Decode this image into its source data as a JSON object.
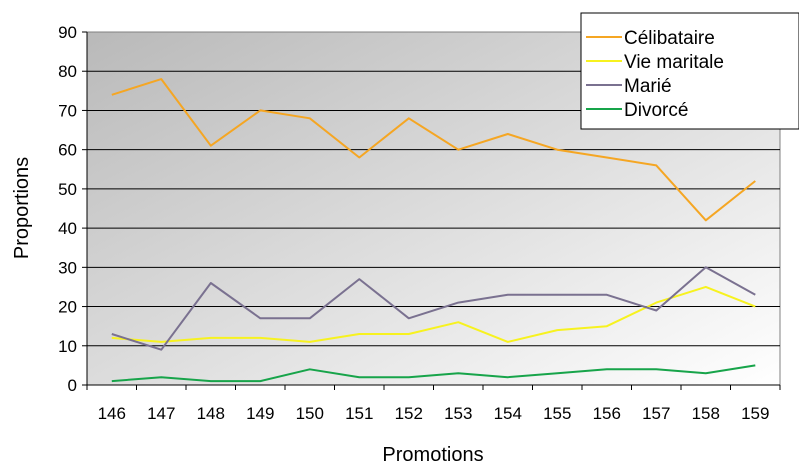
{
  "chart_data": {
    "type": "line",
    "title": "",
    "xlabel": "Promotions",
    "ylabel": "Proportions",
    "categories": [
      "146",
      "147",
      "148",
      "149",
      "150",
      "151",
      "152",
      "153",
      "154",
      "155",
      "156",
      "157",
      "158",
      "159"
    ],
    "ylim": [
      0,
      90
    ],
    "yticks": [
      "0",
      "10",
      "20",
      "30",
      "40",
      "50",
      "60",
      "70",
      "80",
      "90"
    ],
    "grid": "horizontal",
    "legend_position": "top-right",
    "series": [
      {
        "name": "Célibataire",
        "color": "#F5A623",
        "values": [
          74,
          78,
          61,
          70,
          68,
          58,
          68,
          60,
          64,
          60,
          58,
          56,
          42,
          52
        ]
      },
      {
        "name": "Vie maritale",
        "color": "#F7F21F",
        "values": [
          12,
          11,
          12,
          12,
          11,
          13,
          13,
          16,
          11,
          14,
          15,
          21,
          25,
          20
        ]
      },
      {
        "name": "Marié",
        "color": "#7A7190",
        "values": [
          13,
          9,
          26,
          17,
          17,
          27,
          17,
          21,
          23,
          23,
          23,
          19,
          30,
          23
        ]
      },
      {
        "name": "Divorcé",
        "color": "#17A44A",
        "values": [
          1,
          2,
          1,
          1,
          4,
          2,
          2,
          3,
          2,
          3,
          4,
          4,
          3,
          5
        ]
      }
    ]
  }
}
